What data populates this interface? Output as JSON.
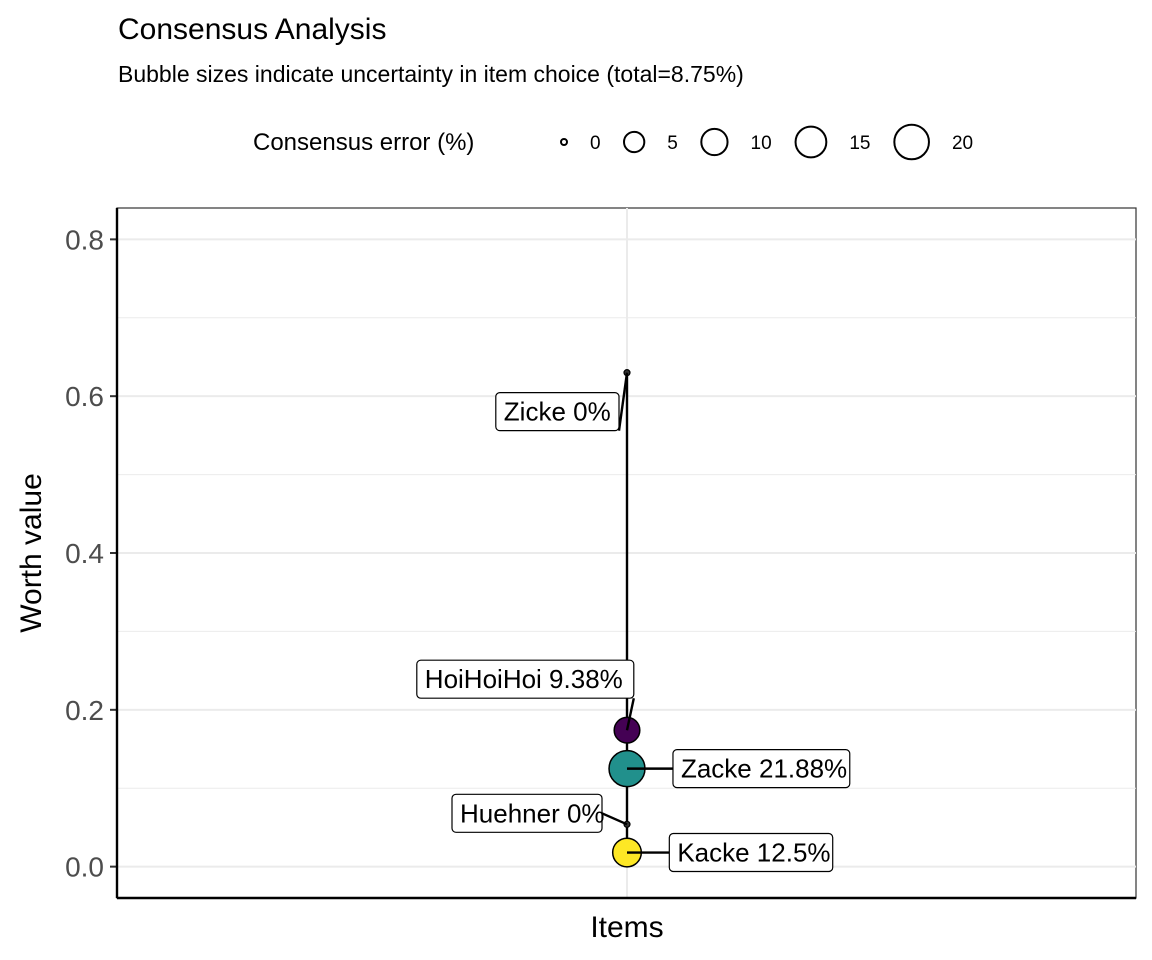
{
  "chart_data": {
    "type": "scatter",
    "title": "Consensus Analysis",
    "subtitle": "Bubble sizes indicate uncertainty in item choice (total=8.75%)",
    "xlabel": "Items",
    "ylabel": "Worth value",
    "ylim": [
      -0.04,
      0.84
    ],
    "yticks": [
      0.0,
      0.2,
      0.4,
      0.6,
      0.8
    ],
    "ytick_labels": [
      "0.0",
      "0.2",
      "0.4",
      "0.6",
      "0.8"
    ],
    "grid": true,
    "legend": {
      "title": "Consensus error (%)",
      "position": "top",
      "entries": [
        {
          "label": "0",
          "value": 0
        },
        {
          "label": "5",
          "value": 5
        },
        {
          "label": "10",
          "value": 10
        },
        {
          "label": "15",
          "value": 15
        },
        {
          "label": "20",
          "value": 20
        }
      ]
    },
    "points": [
      {
        "item": "Zicke",
        "worth": 0.63,
        "error": 0,
        "color": "",
        "label": "Zicke 0%",
        "label_side": "upper-left"
      },
      {
        "item": "HoiHoiHoi",
        "worth": 0.174,
        "error": 9.38,
        "color": "#440154",
        "label": "HoiHoiHoi 9.38%",
        "label_side": "upper-left"
      },
      {
        "item": "Zacke",
        "worth": 0.125,
        "error": 21.88,
        "color": "#21908c",
        "label": "Zacke 21.88%",
        "label_side": "right"
      },
      {
        "item": "Huehner",
        "worth": 0.054,
        "error": 0,
        "color": "",
        "label": "Huehner 0%",
        "label_side": "left"
      },
      {
        "item": "Kacke",
        "worth": 0.018,
        "error": 12.5,
        "color": "#fde725",
        "label": "Kacke 12.5%",
        "label_side": "right"
      }
    ]
  }
}
